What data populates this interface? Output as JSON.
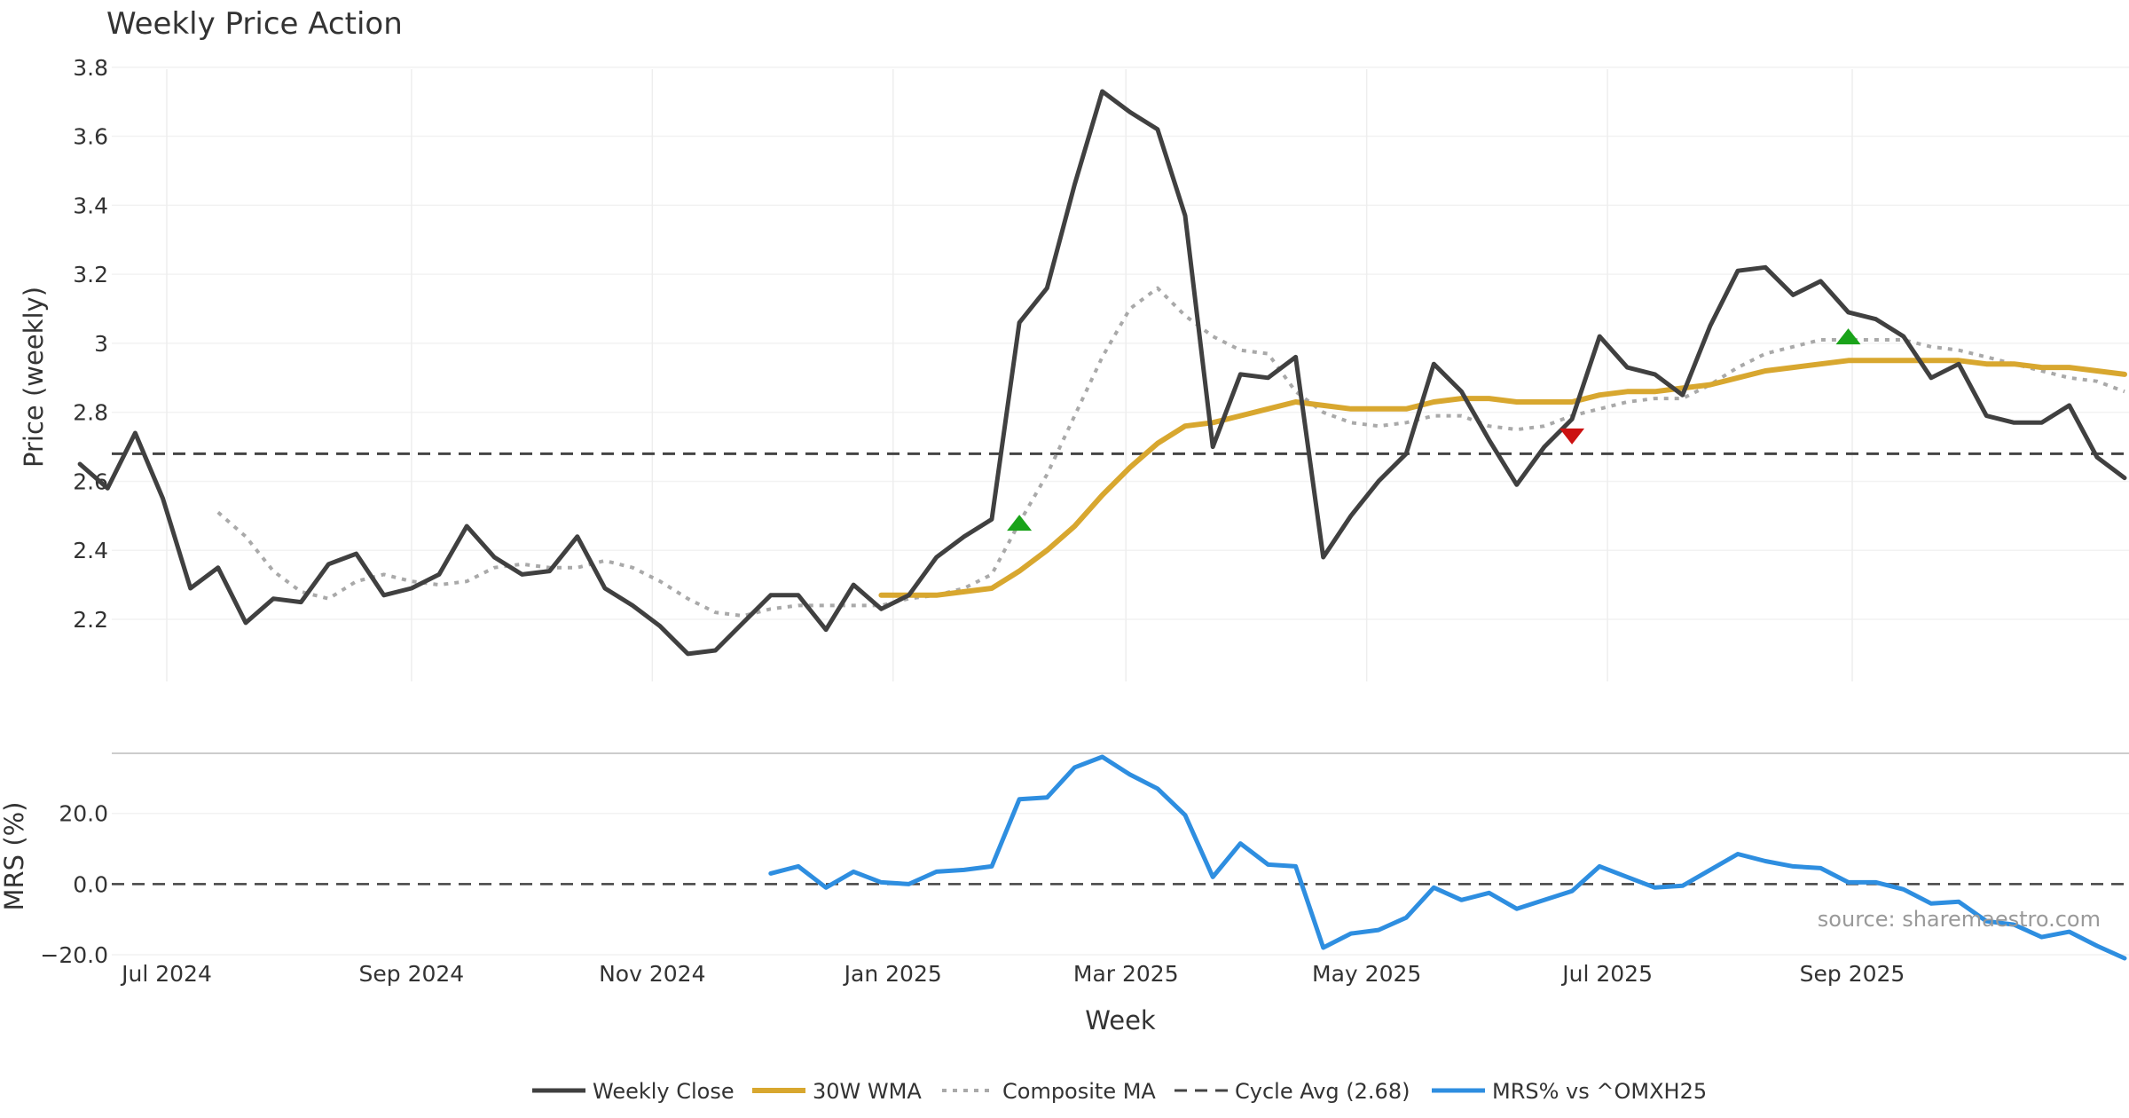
{
  "chart_data": {
    "type": "line",
    "title": "Weekly Price Action",
    "xlabel": "Week",
    "x_tick_labels": [
      "Jul 2024",
      "Sep 2024",
      "Nov 2024",
      "Jan 2025",
      "Mar 2025",
      "May 2025",
      "Jul 2025",
      "Sep 2025"
    ],
    "watermark": "source: sharemaestro.com",
    "price_panel": {
      "ylabel": "Price (weekly)",
      "ylim": [
        2.02,
        3.82
      ],
      "y_ticks": [
        2.2,
        2.4,
        2.6,
        2.8,
        3.0,
        3.2,
        3.4,
        3.6,
        3.8
      ],
      "y_tick_labels": [
        "2.2",
        "2.4",
        "2.6",
        "2.8",
        "3",
        "3.2",
        "3.4",
        "3.6",
        "3.8"
      ],
      "series": [
        {
          "name": "Weekly Close",
          "color": "#404040",
          "x": [
            "2024-06-09",
            "2024-06-16",
            "2024-06-23",
            "2024-06-30",
            "2024-07-07",
            "2024-07-14",
            "2024-07-21",
            "2024-07-28",
            "2024-08-04",
            "2024-08-11",
            "2024-08-18",
            "2024-08-25",
            "2024-09-01",
            "2024-09-08",
            "2024-09-15",
            "2024-09-22",
            "2024-09-29",
            "2024-10-06",
            "2024-10-13",
            "2024-10-20",
            "2024-10-27",
            "2024-11-03",
            "2024-11-10",
            "2024-11-17",
            "2024-11-24",
            "2024-12-01",
            "2024-12-08",
            "2024-12-15",
            "2024-12-22",
            "2024-12-29",
            "2025-01-05",
            "2025-01-12",
            "2025-01-19",
            "2025-01-26",
            "2025-02-02",
            "2025-02-09",
            "2025-02-16",
            "2025-02-23",
            "2025-03-02",
            "2025-03-09",
            "2025-03-16",
            "2025-03-23",
            "2025-03-30",
            "2025-04-06",
            "2025-04-13",
            "2025-04-20",
            "2025-04-27",
            "2025-05-04",
            "2025-05-11",
            "2025-05-18",
            "2025-05-25",
            "2025-06-01",
            "2025-06-08",
            "2025-06-15",
            "2025-06-22",
            "2025-06-29",
            "2025-07-06",
            "2025-07-13",
            "2025-07-20",
            "2025-07-27",
            "2025-08-03",
            "2025-08-10",
            "2025-08-17",
            "2025-08-24",
            "2025-08-31",
            "2025-09-07",
            "2025-09-14",
            "2025-09-21",
            "2025-09-28",
            "2025-10-05",
            "2025-10-12",
            "2025-10-19",
            "2025-10-26",
            "2025-11-02",
            "2025-11-09"
          ],
          "y": [
            2.65,
            2.58,
            2.74,
            2.55,
            2.29,
            2.35,
            2.19,
            2.26,
            2.25,
            2.36,
            2.39,
            2.27,
            2.29,
            2.33,
            2.47,
            2.38,
            2.33,
            2.34,
            2.44,
            2.29,
            2.24,
            2.18,
            2.1,
            2.11,
            2.19,
            2.27,
            2.27,
            2.17,
            2.3,
            2.23,
            2.27,
            2.38,
            2.44,
            2.49,
            3.06,
            3.16,
            3.46,
            3.73,
            3.67,
            3.62,
            3.37,
            2.7,
            2.91,
            2.9,
            2.96,
            2.38,
            2.5,
            2.6,
            2.68,
            2.94,
            2.86,
            2.72,
            2.59,
            2.7,
            2.78,
            3.02,
            2.93,
            2.91,
            2.85,
            3.05,
            3.21,
            3.22,
            3.14,
            3.18,
            3.09,
            3.07,
            3.02,
            2.9,
            2.94,
            2.79,
            2.77,
            2.77,
            2.82,
            2.67,
            2.61
          ]
        },
        {
          "name": "30W WMA",
          "color": "#d8a72f",
          "x": [
            "2024-12-29",
            "2025-01-05",
            "2025-01-12",
            "2025-01-19",
            "2025-01-26",
            "2025-02-02",
            "2025-02-09",
            "2025-02-16",
            "2025-02-23",
            "2025-03-02",
            "2025-03-09",
            "2025-03-16",
            "2025-03-23",
            "2025-03-30",
            "2025-04-06",
            "2025-04-13",
            "2025-04-20",
            "2025-04-27",
            "2025-05-04",
            "2025-05-11",
            "2025-05-18",
            "2025-05-25",
            "2025-06-01",
            "2025-06-08",
            "2025-06-15",
            "2025-06-22",
            "2025-06-29",
            "2025-07-06",
            "2025-07-13",
            "2025-07-20",
            "2025-07-27",
            "2025-08-03",
            "2025-08-10",
            "2025-08-17",
            "2025-08-24",
            "2025-08-31",
            "2025-09-07",
            "2025-09-14",
            "2025-09-21",
            "2025-09-28",
            "2025-10-05",
            "2025-10-12",
            "2025-10-19",
            "2025-10-26",
            "2025-11-02",
            "2025-11-09"
          ],
          "y": [
            2.27,
            2.27,
            2.27,
            2.28,
            2.29,
            2.34,
            2.4,
            2.47,
            2.56,
            2.64,
            2.71,
            2.76,
            2.77,
            2.79,
            2.81,
            2.83,
            2.82,
            2.81,
            2.81,
            2.81,
            2.83,
            2.84,
            2.84,
            2.83,
            2.83,
            2.83,
            2.85,
            2.86,
            2.86,
            2.87,
            2.88,
            2.9,
            2.92,
            2.93,
            2.94,
            2.95,
            2.95,
            2.95,
            2.95,
            2.95,
            2.94,
            2.94,
            2.93,
            2.93,
            2.92,
            2.91
          ]
        },
        {
          "name": "Composite MA",
          "color": "#a9a9a9",
          "dash": "dotted",
          "x": [
            "2024-07-14",
            "2024-07-21",
            "2024-07-28",
            "2024-08-04",
            "2024-08-11",
            "2024-08-18",
            "2024-08-25",
            "2024-09-01",
            "2024-09-08",
            "2024-09-15",
            "2024-09-22",
            "2024-09-29",
            "2024-10-06",
            "2024-10-13",
            "2024-10-20",
            "2024-10-27",
            "2024-11-03",
            "2024-11-10",
            "2024-11-17",
            "2024-11-24",
            "2024-12-01",
            "2024-12-08",
            "2024-12-15",
            "2024-12-22",
            "2024-12-29",
            "2025-01-05",
            "2025-01-12",
            "2025-01-19",
            "2025-01-26",
            "2025-02-02",
            "2025-02-09",
            "2025-02-16",
            "2025-02-23",
            "2025-03-02",
            "2025-03-09",
            "2025-03-16",
            "2025-03-23",
            "2025-03-30",
            "2025-04-06",
            "2025-04-13",
            "2025-04-20",
            "2025-04-27",
            "2025-05-04",
            "2025-05-11",
            "2025-05-18",
            "2025-05-25",
            "2025-06-01",
            "2025-06-08",
            "2025-06-15",
            "2025-06-22",
            "2025-06-29",
            "2025-07-06",
            "2025-07-13",
            "2025-07-20",
            "2025-07-27",
            "2025-08-03",
            "2025-08-10",
            "2025-08-17",
            "2025-08-24",
            "2025-08-31",
            "2025-09-07",
            "2025-09-14",
            "2025-09-21",
            "2025-09-28",
            "2025-10-05",
            "2025-10-12",
            "2025-10-19",
            "2025-10-26",
            "2025-11-02",
            "2025-11-09"
          ],
          "y": [
            2.51,
            2.44,
            2.34,
            2.28,
            2.26,
            2.31,
            2.33,
            2.31,
            2.3,
            2.31,
            2.35,
            2.36,
            2.35,
            2.35,
            2.37,
            2.35,
            2.31,
            2.26,
            2.22,
            2.21,
            2.23,
            2.24,
            2.24,
            2.24,
            2.24,
            2.26,
            2.27,
            2.29,
            2.33,
            2.48,
            2.62,
            2.79,
            2.96,
            3.1,
            3.16,
            3.08,
            3.02,
            2.98,
            2.97,
            2.86,
            2.8,
            2.77,
            2.76,
            2.77,
            2.79,
            2.79,
            2.76,
            2.75,
            2.76,
            2.79,
            2.81,
            2.83,
            2.84,
            2.84,
            2.88,
            2.93,
            2.97,
            2.99,
            3.01,
            3.01,
            3.01,
            3.01,
            2.99,
            2.98,
            2.96,
            2.94,
            2.92,
            2.9,
            2.89,
            2.86
          ]
        },
        {
          "name": "Cycle Avg (2.68)",
          "color": "#444444",
          "dash": "dashed",
          "y": 2.68
        }
      ],
      "markers": [
        {
          "type": "buy",
          "x": "2025-02-02",
          "y": 2.48,
          "color": "#1aa31a"
        },
        {
          "type": "sell",
          "x": "2025-06-22",
          "y": 2.73,
          "color": "#cc1111"
        },
        {
          "type": "buy",
          "x": "2025-08-31",
          "y": 3.02,
          "color": "#1aa31a"
        }
      ]
    },
    "mrs_panel": {
      "ylabel": "MRS (%)",
      "ylim": [
        -20,
        37
      ],
      "y_ticks": [
        -20,
        0,
        20
      ],
      "y_tick_labels": [
        "−20.0",
        "0.0",
        "20.0"
      ],
      "zero_line": 0,
      "series": [
        {
          "name": "MRS% vs ^OMXH25",
          "color": "#2e8ee0",
          "x": [
            "2024-12-01",
            "2024-12-08",
            "2024-12-15",
            "2024-12-22",
            "2024-12-29",
            "2025-01-05",
            "2025-01-12",
            "2025-01-19",
            "2025-01-26",
            "2025-02-02",
            "2025-02-09",
            "2025-02-16",
            "2025-02-23",
            "2025-03-02",
            "2025-03-09",
            "2025-03-16",
            "2025-03-23",
            "2025-03-30",
            "2025-04-06",
            "2025-04-13",
            "2025-04-20",
            "2025-04-27",
            "2025-05-04",
            "2025-05-11",
            "2025-05-18",
            "2025-05-25",
            "2025-06-01",
            "2025-06-08",
            "2025-06-15",
            "2025-06-22",
            "2025-06-29",
            "2025-07-06",
            "2025-07-13",
            "2025-07-20",
            "2025-07-27",
            "2025-08-03",
            "2025-08-10",
            "2025-08-17",
            "2025-08-24",
            "2025-08-31",
            "2025-09-07",
            "2025-09-14",
            "2025-09-21",
            "2025-09-28",
            "2025-10-05",
            "2025-10-12",
            "2025-10-19",
            "2025-10-26",
            "2025-11-02",
            "2025-11-09"
          ],
          "y": [
            3,
            5,
            -1,
            3.5,
            0.5,
            0,
            3.5,
            4,
            5,
            24,
            24.5,
            33,
            36,
            31,
            27,
            19.5,
            2,
            11.5,
            5.5,
            5,
            -18,
            -14,
            -13,
            -9.5,
            -1,
            -4.5,
            -2.5,
            -7,
            -4.5,
            -2,
            5,
            2,
            -1,
            -0.5,
            4,
            8.5,
            6.5,
            5,
            4.5,
            0.5,
            0.5,
            -1.5,
            -5.5,
            -5,
            -10.5,
            -11.5,
            -15,
            -13.5,
            -17.5,
            -21
          ]
        }
      ]
    },
    "legend": {
      "placement": "bottom-center",
      "entries": [
        "Weekly Close",
        "30W WMA",
        "Composite MA",
        "Cycle Avg (2.68)",
        "MRS% vs ^OMXH25"
      ]
    }
  }
}
